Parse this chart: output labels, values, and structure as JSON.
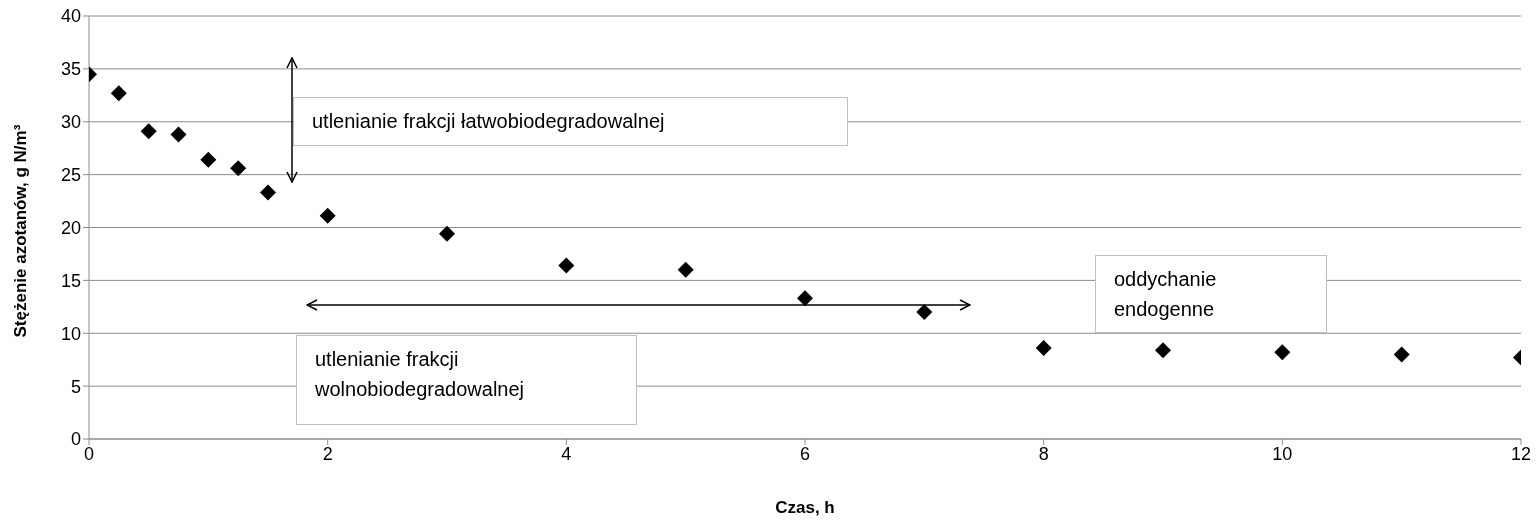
{
  "chart_data": {
    "type": "scatter",
    "xlabel": "Czas, h",
    "ylabel": "Stężenie azotanów, g N/m³",
    "x": [
      0,
      0.25,
      0.5,
      0.75,
      1,
      1.25,
      1.5,
      2,
      3,
      4,
      5,
      6,
      7,
      8,
      9,
      10,
      11,
      12
    ],
    "series": [
      {
        "color": "#000000",
        "values": [
          34.5,
          32.7,
          29.1,
          28.8,
          26.4,
          25.6,
          23.3,
          21.1,
          19.4,
          16.4,
          16.0,
          13.3,
          12.0,
          8.6,
          8.4,
          8.2,
          8.0,
          7.7
        ]
      }
    ],
    "xlim": [
      0,
      12
    ],
    "xticks": [
      0,
      2,
      4,
      6,
      8,
      10,
      12
    ],
    "ylim": [
      0,
      40
    ],
    "yticks": [
      0,
      5,
      10,
      15,
      20,
      25,
      30,
      35,
      40
    ],
    "grid": "y",
    "marker": "diamond",
    "annotations": [
      "utlenianie frakcji łatwobiodegradowalnej",
      "oddychanie endogenne",
      "utlenianie frakcji wolnobiodegradowalnej"
    ]
  }
}
